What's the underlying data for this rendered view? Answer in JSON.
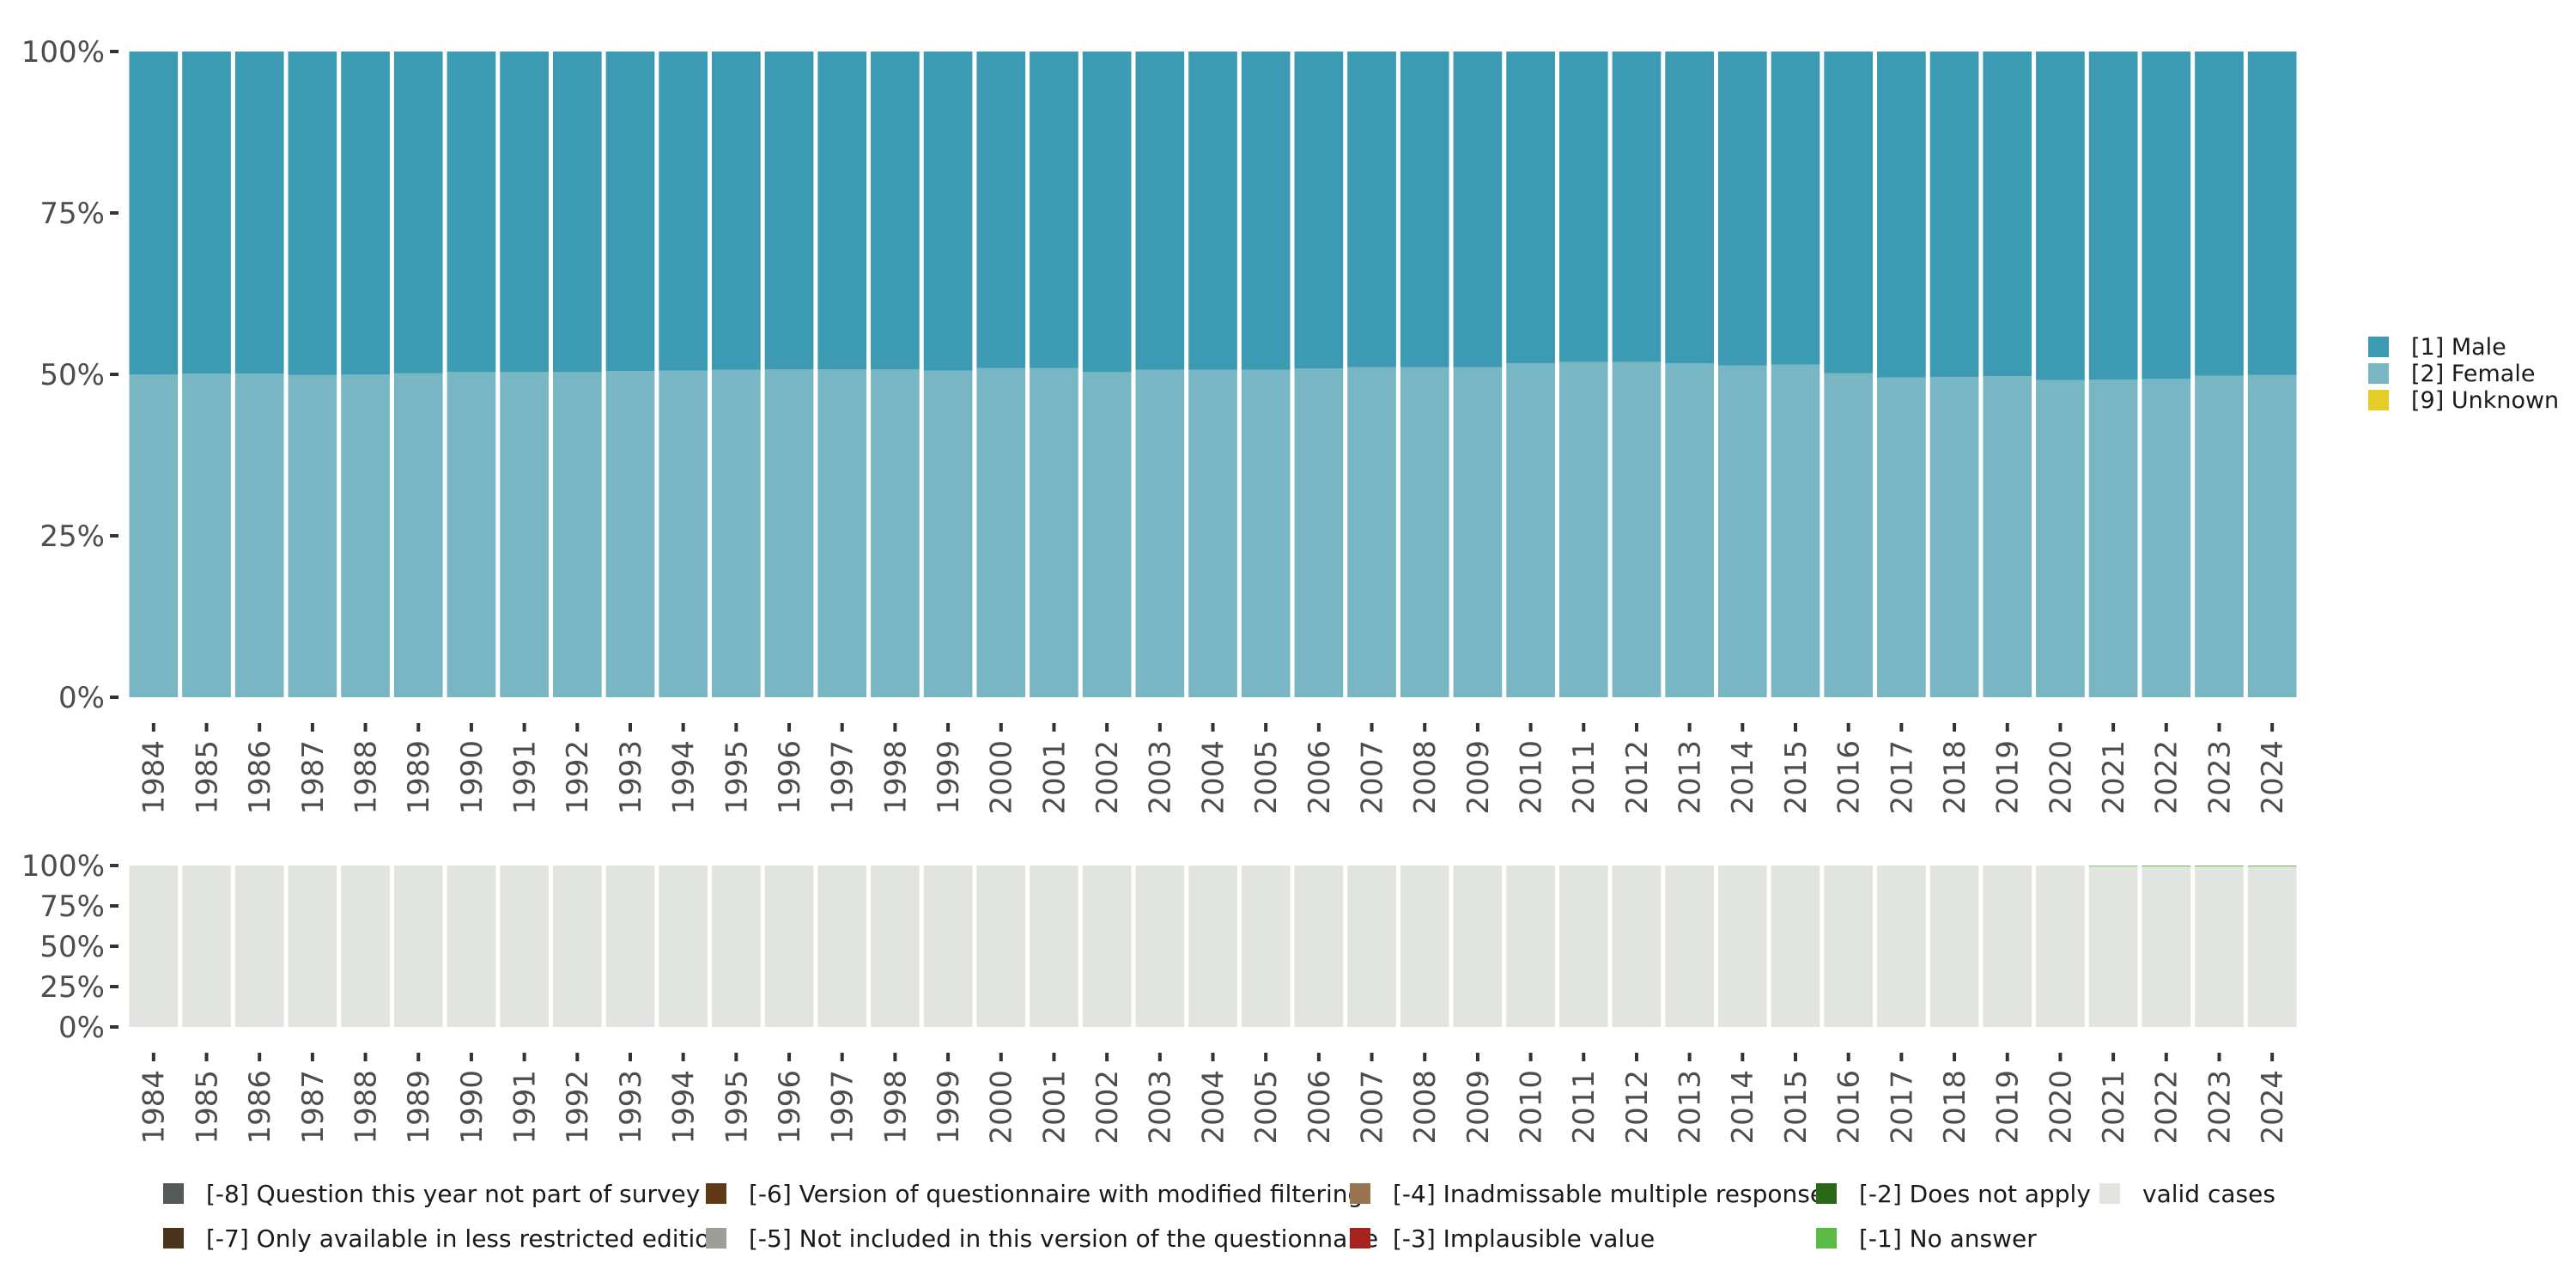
{
  "chart_data": [
    {
      "type": "bar",
      "stacked": true,
      "percent": true,
      "ylim": [
        0,
        100
      ],
      "yticks": [
        "0%",
        "25%",
        "50%",
        "75%",
        "100%"
      ],
      "categories": [
        "1984",
        "1985",
        "1986",
        "1987",
        "1988",
        "1989",
        "1990",
        "1991",
        "1992",
        "1993",
        "1994",
        "1995",
        "1996",
        "1997",
        "1998",
        "1999",
        "2000",
        "2001",
        "2002",
        "2003",
        "2004",
        "2005",
        "2006",
        "2007",
        "2008",
        "2009",
        "2010",
        "2011",
        "2012",
        "2013",
        "2014",
        "2015",
        "2016",
        "2017",
        "2018",
        "2019",
        "2020",
        "2021",
        "2022",
        "2023",
        "2024"
      ],
      "series": [
        {
          "name": "[2] Female",
          "color": "#78b6c4",
          "values": [
            50.0,
            50.1,
            50.1,
            49.9,
            50.0,
            50.2,
            50.4,
            50.4,
            50.4,
            50.5,
            50.6,
            50.7,
            50.8,
            50.8,
            50.8,
            50.6,
            51.0,
            51.0,
            50.4,
            50.7,
            50.7,
            50.7,
            50.9,
            51.1,
            51.1,
            51.1,
            51.7,
            51.9,
            51.9,
            51.7,
            51.4,
            51.5,
            50.2,
            49.5,
            49.6,
            49.7,
            49.1,
            49.2,
            49.3,
            49.8,
            49.9
          ]
        },
        {
          "name": "[1] Male",
          "color": "#3c9ab3",
          "values": [
            50.0,
            49.9,
            49.9,
            50.1,
            50.0,
            49.8,
            49.6,
            49.6,
            49.6,
            49.5,
            49.4,
            49.3,
            49.2,
            49.2,
            49.2,
            49.4,
            49.0,
            49.0,
            49.6,
            49.3,
            49.3,
            49.3,
            49.1,
            48.9,
            48.9,
            48.9,
            48.3,
            48.1,
            48.1,
            48.3,
            48.6,
            48.5,
            49.8,
            50.5,
            50.4,
            50.3,
            50.9,
            50.8,
            50.7,
            50.2,
            50.1
          ]
        },
        {
          "name": "[9] Unknown",
          "color": "#e6cd27",
          "values": [
            0,
            0,
            0,
            0,
            0,
            0,
            0,
            0,
            0,
            0,
            0,
            0,
            0,
            0,
            0,
            0,
            0,
            0,
            0,
            0,
            0,
            0,
            0,
            0,
            0,
            0,
            0,
            0,
            0,
            0,
            0,
            0,
            0,
            0,
            0,
            0,
            0,
            0,
            0,
            0,
            0
          ]
        }
      ],
      "legend": {
        "position": "right",
        "order": [
          "[1] Male",
          "[2] Female",
          "[9] Unknown"
        ]
      }
    },
    {
      "type": "bar",
      "stacked": true,
      "percent": true,
      "ylim": [
        0,
        100
      ],
      "yticks": [
        "0%",
        "25%",
        "50%",
        "75%",
        "100%"
      ],
      "categories": [
        "1984",
        "1985",
        "1986",
        "1987",
        "1988",
        "1989",
        "1990",
        "1991",
        "1992",
        "1993",
        "1994",
        "1995",
        "1996",
        "1997",
        "1998",
        "1999",
        "2000",
        "2001",
        "2002",
        "2003",
        "2004",
        "2005",
        "2006",
        "2007",
        "2008",
        "2009",
        "2010",
        "2011",
        "2012",
        "2013",
        "2014",
        "2015",
        "2016",
        "2017",
        "2018",
        "2019",
        "2020",
        "2021",
        "2022",
        "2023",
        "2024"
      ],
      "series": [
        {
          "name": "valid cases",
          "color": "#e1e4df",
          "values": [
            100,
            100,
            100,
            100,
            100,
            100,
            100,
            100,
            100,
            100,
            100,
            100,
            100,
            100,
            100,
            100,
            100,
            100,
            100,
            100,
            100,
            100,
            100,
            100,
            100,
            100,
            100,
            100,
            100,
            100,
            100,
            100,
            100,
            100,
            100,
            100,
            100,
            99.6,
            99.5,
            99.5,
            99.5
          ]
        },
        {
          "name": "[-1] No answer",
          "color": "#5bbb46",
          "values": [
            0,
            0,
            0,
            0,
            0,
            0,
            0,
            0,
            0,
            0,
            0,
            0,
            0,
            0,
            0,
            0,
            0,
            0,
            0,
            0,
            0,
            0,
            0,
            0,
            0,
            0,
            0,
            0,
            0,
            0,
            0,
            0,
            0,
            0,
            0,
            0,
            0,
            0.4,
            0.5,
            0.5,
            0.5
          ]
        }
      ],
      "legend": {
        "position": "bottom",
        "items": [
          {
            "name": "[-8] Question this year not part of survey",
            "color": "#545a56"
          },
          {
            "name": "[-7] Only available in less restricted edition",
            "color": "#4a331d"
          },
          {
            "name": "[-6] Version of questionnaire with modified filtering",
            "color": "#5e3a17"
          },
          {
            "name": "[-5] Not included in this version of the questionnaire",
            "color": "#9d9e98"
          },
          {
            "name": "[-4] Inadmissable multiple response",
            "color": "#9a7350"
          },
          {
            "name": "[-3] Implausible value",
            "color": "#a4231e"
          },
          {
            "name": "[-2] Does not apply",
            "color": "#2a6817"
          },
          {
            "name": "[-1] No answer",
            "color": "#5bbb46"
          },
          {
            "name": "valid cases",
            "color": "#e1e4df"
          }
        ]
      }
    }
  ]
}
